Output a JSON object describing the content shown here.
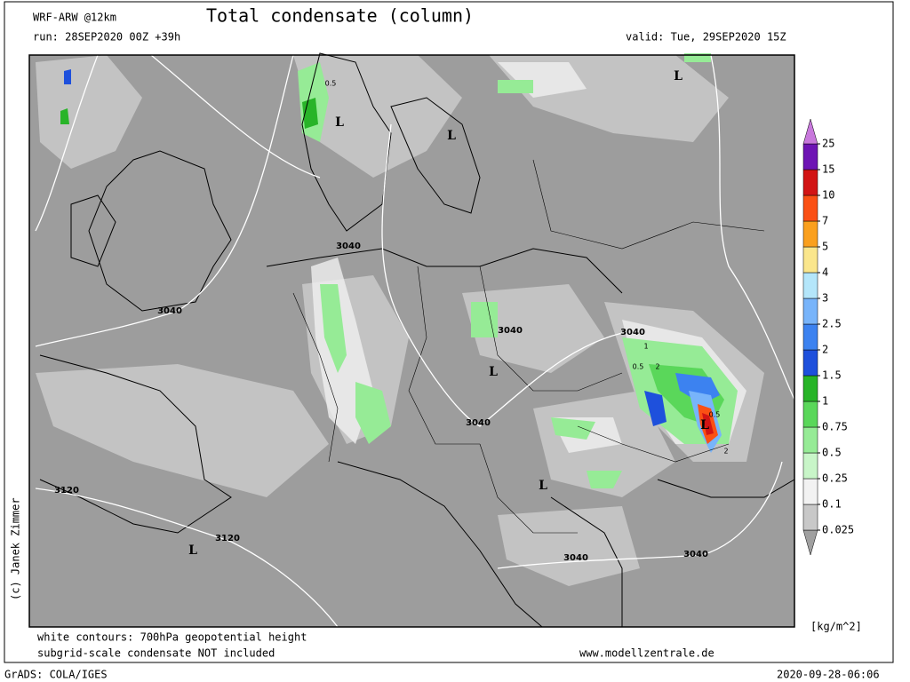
{
  "header": {
    "model": "WRF-ARW @12km",
    "title": "Total condensate (column)",
    "run": "run: 28SEP2020 00Z +39h",
    "valid": "valid: Tue, 29SEP2020 15Z"
  },
  "copyright": "(c) Janek Zimmer",
  "footer": {
    "note1": "white contours: 700hPa geopotential height",
    "note2": "subgrid-scale condensate NOT included",
    "website": "www.modellzentrale.de",
    "software": "GrADS: COLA/IGES",
    "timestamp": "2020-09-28-06:06"
  },
  "legend": {
    "unit": "[kg/m^2]",
    "levels": [
      0.025,
      0.1,
      0.25,
      0.5,
      0.75,
      1,
      1.5,
      2,
      2.5,
      3,
      4,
      5,
      7,
      10,
      15,
      25
    ],
    "colors": [
      "#a0a0a0",
      "#c8c8c8",
      "#f2f2f2",
      "#c8f5c8",
      "#96eb96",
      "#5ad75a",
      "#28b428",
      "#1e50dc",
      "#3c82f0",
      "#78b4fa",
      "#b4e6fa",
      "#fae68c",
      "#faa01e",
      "#fa5014",
      "#d21414",
      "#6e14b4",
      "#c878dc"
    ]
  },
  "map": {
    "contour_labels": [
      "3040",
      "3040",
      "3040",
      "3040",
      "3040",
      "3040",
      "3040",
      "3120",
      "3120"
    ],
    "lows": [
      "L",
      "L",
      "L",
      "L",
      "L",
      "L",
      "L"
    ],
    "cell_labels": [
      "0.5",
      "0.5",
      "0.5",
      "2",
      "2",
      "1"
    ]
  }
}
